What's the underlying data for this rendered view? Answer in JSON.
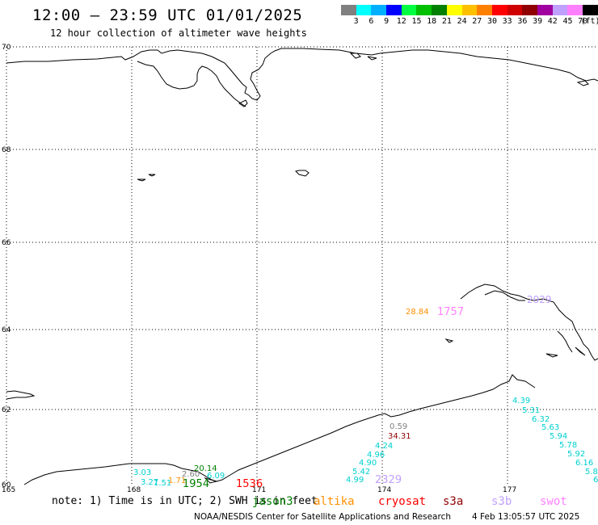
{
  "header": {
    "title": "12:00 – 23:59 UTC 01/01/2025",
    "subtitle": "12 hour collection of altimeter wave heights"
  },
  "colorbar": {
    "colors": [
      "#808080",
      "#00ffff",
      "#00b0ff",
      "#0000ff",
      "#00ff40",
      "#00c000",
      "#008000",
      "#ffff00",
      "#ffc000",
      "#ff8000",
      "#ff0000",
      "#d00000",
      "#900000",
      "#a000a0",
      "#c0a0ff",
      "#ff80ff",
      "#000000"
    ],
    "labels": [
      "3",
      "6",
      "9",
      "12",
      "15",
      "18",
      "21",
      "24",
      "27",
      "30",
      "33",
      "36",
      "39",
      "42",
      "45",
      "70",
      "(ft)"
    ]
  },
  "map": {
    "lat_labels": [
      "70",
      "68",
      "66",
      "64",
      "62",
      "60"
    ],
    "lon_labels": [
      "165",
      "168",
      "171",
      "174",
      "177"
    ],
    "observations": [
      {
        "text": "0.59",
        "color": "#808080"
      },
      {
        "text": "34.31",
        "color": "#900000"
      },
      {
        "text": "4.24",
        "color": "#00d0d0"
      },
      {
        "text": "4.96",
        "color": "#00d0d0"
      },
      {
        "text": "4.90",
        "color": "#00d0d0"
      },
      {
        "text": "5.42",
        "color": "#00d0d0"
      },
      {
        "text": "4.99",
        "color": "#00d0d0"
      },
      {
        "text": "2329",
        "color": "#c0a0ff"
      },
      {
        "text": "4.39",
        "color": "#00d0d0"
      },
      {
        "text": "5.31",
        "color": "#00d0d0"
      },
      {
        "text": "6.32",
        "color": "#00d0d0"
      },
      {
        "text": "5.63",
        "color": "#00d0d0"
      },
      {
        "text": "5.94",
        "color": "#00d0d0"
      },
      {
        "text": "5.78",
        "color": "#00d0d0"
      },
      {
        "text": "5.92",
        "color": "#00d0d0"
      },
      {
        "text": "6.16",
        "color": "#00d0d0"
      },
      {
        "text": "5.8",
        "color": "#00d0d0"
      },
      {
        "text": "6",
        "color": "#00d0d0"
      },
      {
        "text": "28.84",
        "color": "#ff9000"
      },
      {
        "text": "1757",
        "color": "#ff80ff"
      },
      {
        "text": "2029",
        "color": "#c0a0ff"
      },
      {
        "text": "3.03",
        "color": "#00d0d0"
      },
      {
        "text": "3.27",
        "color": "#00d0d0"
      },
      {
        "text": "1.51",
        "color": "#00d0d0"
      },
      {
        "text": "1.71",
        "color": "#ff9000"
      },
      {
        "text": "2.60",
        "color": "#808080"
      },
      {
        "text": "20.14",
        "color": "#008000"
      },
      {
        "text": "1954",
        "color": "#008000"
      },
      {
        "text": "6.09",
        "color": "#00d0d0"
      },
      {
        "text": "1536",
        "color": "#ff0000"
      }
    ]
  },
  "footer": {
    "note": "note: 1) Time is in UTC; 2) SWH is in feet",
    "satellites": [
      {
        "name": "jason3",
        "color": "#008000"
      },
      {
        "name": "altika",
        "color": "#ff9000"
      },
      {
        "name": "cryosat",
        "color": "#ff0000"
      },
      {
        "name": "s3a",
        "color": "#900000"
      },
      {
        "name": "s3b",
        "color": "#c0a0ff"
      },
      {
        "name": "swot",
        "color": "#ff80ff"
      }
    ],
    "credit": "NOAA/NESDIS Center for Satellite Applications and Research",
    "generated": "4 Feb 13:05:57 UTC 2025"
  }
}
